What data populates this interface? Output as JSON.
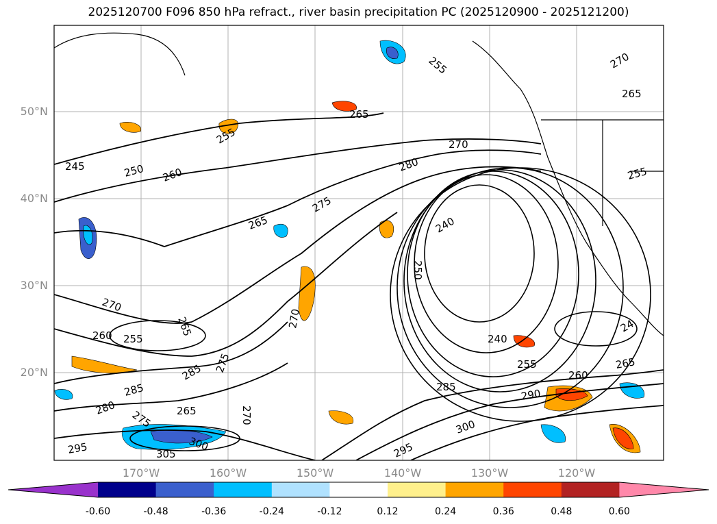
{
  "title": "2025120700 F096 850 hPa refract., river basin precipitation PC (2025120900 - 2025121200)",
  "lat_labels": [
    "50°N",
    "40°N",
    "30°N",
    "20°N"
  ],
  "lon_labels": [
    "170°W",
    "160°W",
    "150°W",
    "140°W",
    "130°W",
    "120°W"
  ],
  "contour_labels": [
    "245",
    "250",
    "255",
    "260",
    "265",
    "270",
    "275",
    "280",
    "240",
    "250",
    "240",
    "24",
    "265",
    "255",
    "270",
    "265",
    "260",
    "255",
    "270",
    "265",
    "285",
    "285",
    "275",
    "280",
    "275",
    "265",
    "270",
    "295",
    "300",
    "305",
    "300",
    "295",
    "285",
    "290",
    "255",
    "260",
    "265",
    "255",
    "270"
  ],
  "colorbar": {
    "ticks": [
      "-0.60",
      "-0.48",
      "-0.36",
      "-0.24",
      "-0.12",
      "0.12",
      "0.24",
      "0.36",
      "0.48",
      "0.60"
    ],
    "colors": [
      "#9932cc",
      "#00008b",
      "#3a5fcd",
      "#00bfff",
      "#b0e2ff",
      "#ffffff",
      "#fff08c",
      "#ffa500",
      "#ff4500",
      "#b22222",
      "#ff88aa"
    ]
  }
}
